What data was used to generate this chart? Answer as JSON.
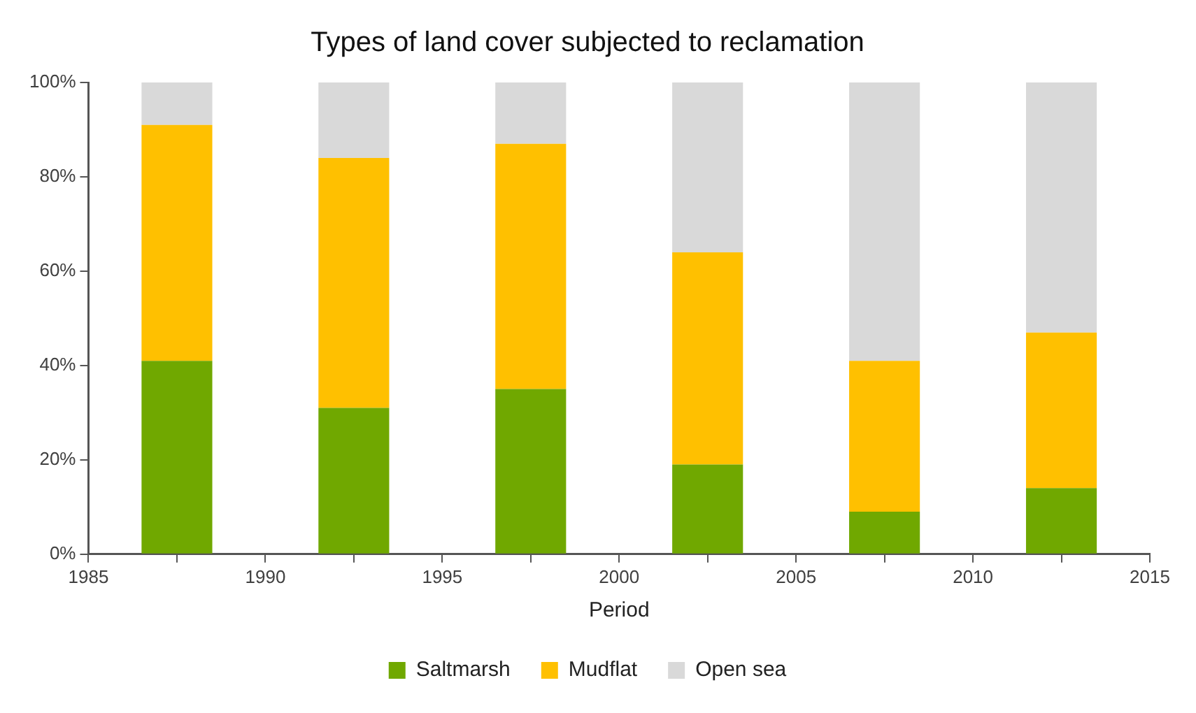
{
  "chart_data": {
    "type": "bar",
    "title": "Types of land cover subjected to reclamation",
    "xlabel": "Period",
    "x": [
      1987.5,
      1992.5,
      1997.5,
      2002.5,
      2007.5,
      2012.5
    ],
    "stacked": true,
    "series": [
      {
        "name": "Saltmarsh",
        "color": "#70a800",
        "values": [
          41,
          31,
          35,
          19,
          9,
          14
        ]
      },
      {
        "name": "Mudflat",
        "color": "#ffc000",
        "values": [
          50,
          53,
          52,
          45,
          32,
          33
        ]
      },
      {
        "name": "Open sea",
        "color": "#d9d9d9",
        "values": [
          9,
          16,
          13,
          36,
          59,
          53
        ]
      }
    ],
    "xlim": [
      1985,
      2015
    ],
    "xticks": [
      1985,
      {
        "value": 1987.5,
        "label": null
      },
      1990,
      {
        "value": 1992.5,
        "label": null
      },
      1995,
      {
        "value": 1997.5,
        "label": null
      },
      2000,
      {
        "value": 2002.5,
        "label": null
      },
      2005,
      {
        "value": 2007.5,
        "label": null
      },
      2010,
      {
        "value": 2012.5,
        "label": null
      },
      2015
    ],
    "ylim": [
      0,
      100
    ],
    "yticks": [
      {
        "value": 0,
        "label": "0%"
      },
      {
        "value": 20,
        "label": "20%"
      },
      {
        "value": 40,
        "label": "40%"
      },
      {
        "value": 60,
        "label": "60%"
      },
      {
        "value": 80,
        "label": "80%"
      },
      {
        "value": 100,
        "label": "100%"
      }
    ],
    "grid": false,
    "legend": "bottom"
  }
}
